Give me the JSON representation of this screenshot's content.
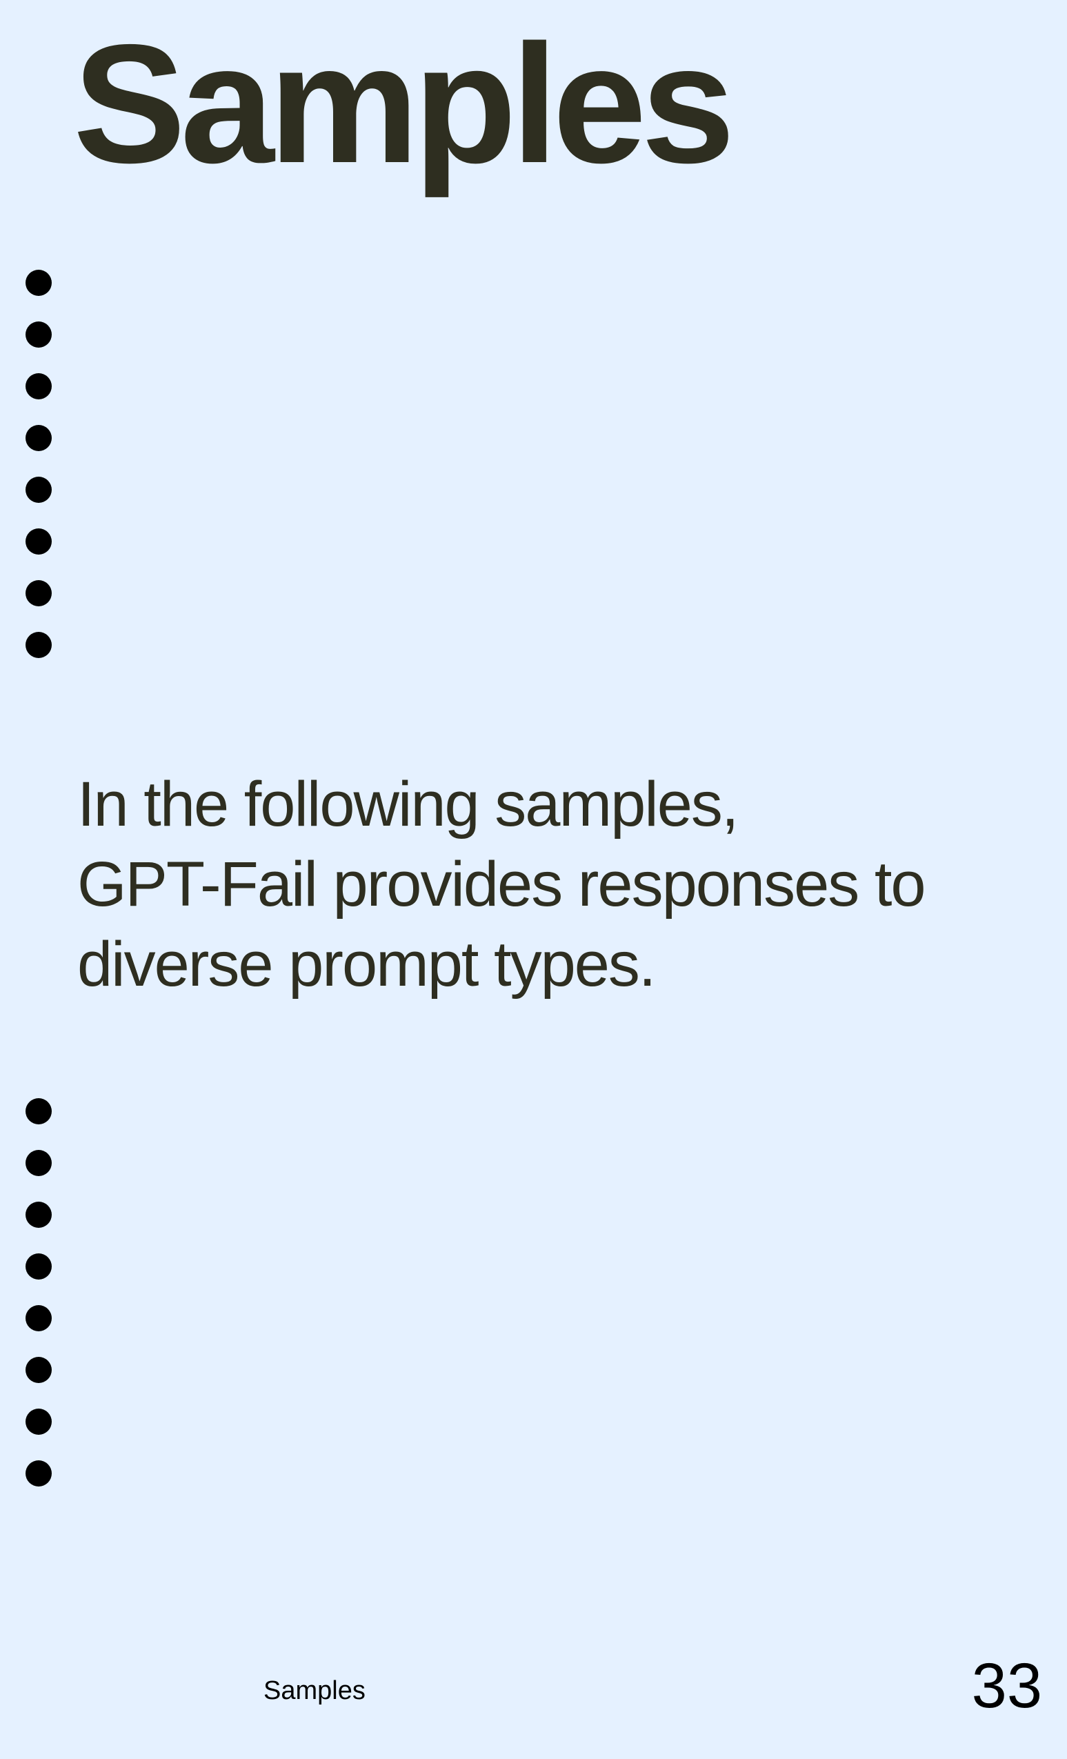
{
  "page": {
    "title": "Samples",
    "intro_lines": [
      "In the following samples,",
      "GPT-Fail provides responses to",
      "diverse prompt types."
    ],
    "footer_label": "Samples",
    "page_number": "33"
  },
  "colors": {
    "background": "#e5f1ff",
    "heading_text": "#2e2e20",
    "dots": "#000000"
  }
}
